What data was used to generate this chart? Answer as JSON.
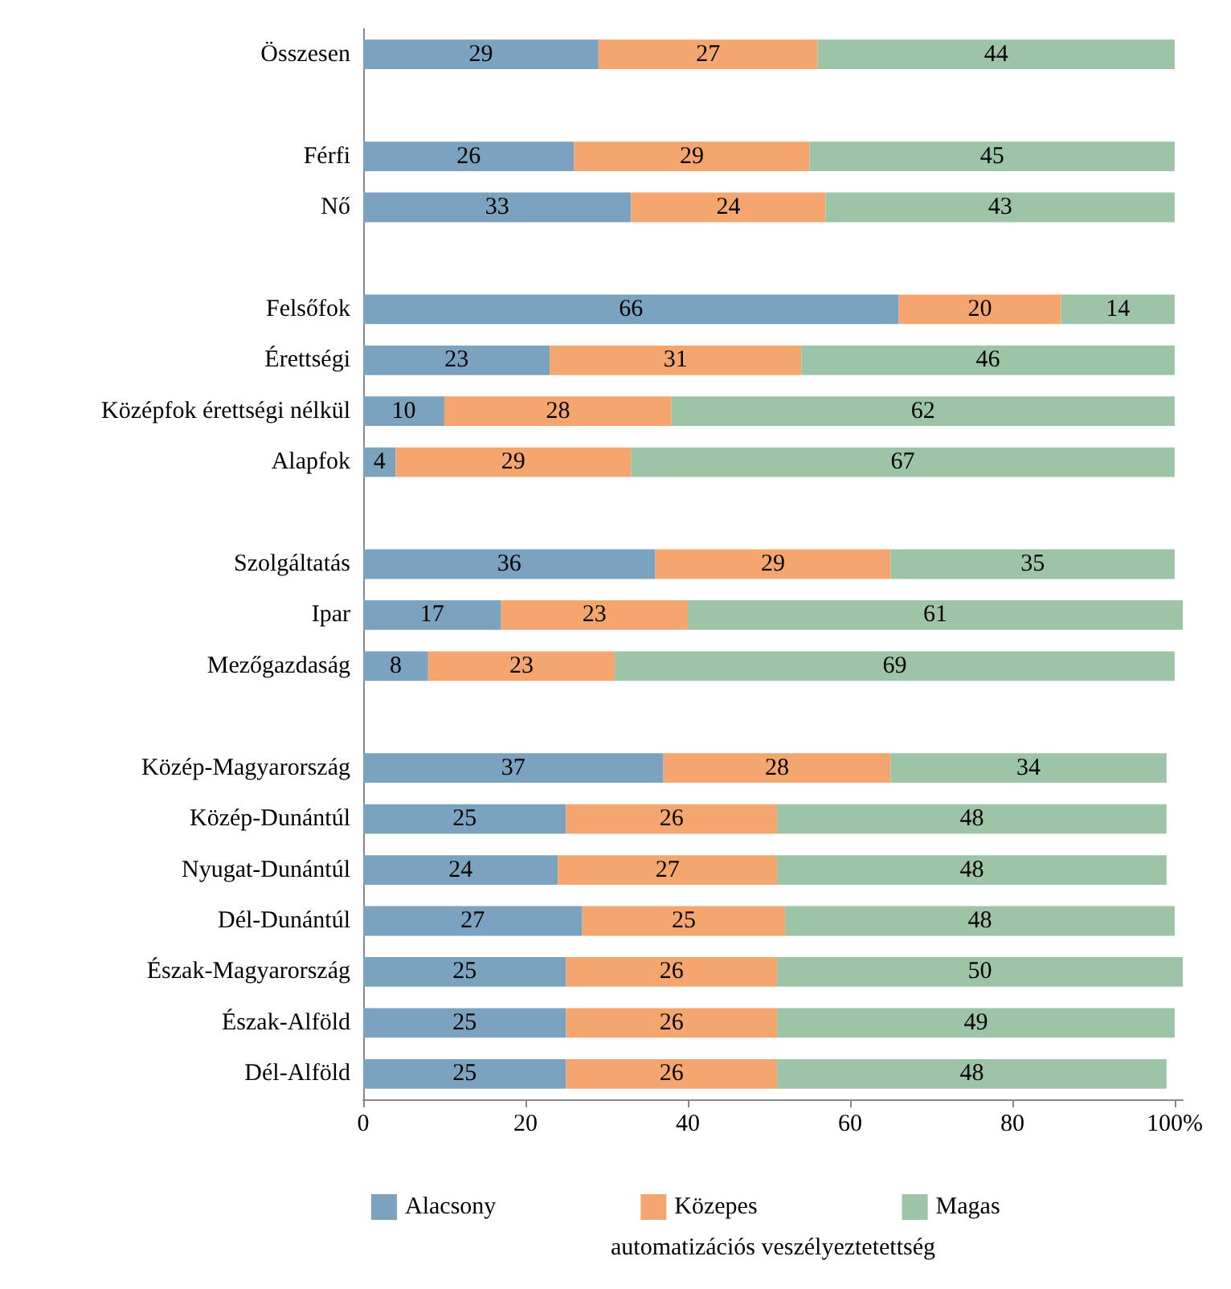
{
  "chart_data": {
    "type": "bar",
    "orientation": "horizontal",
    "stacked": true,
    "xlabel": "automatizációs veszélyeztetettség",
    "categories": [
      "Összesen",
      null,
      "Férfi",
      "Nő",
      null,
      "Felsőfok",
      "Érettségi",
      "Középfok érettségi nélkül",
      "Alapfok",
      null,
      "Szolgáltatás",
      "Ipar",
      "Mezőgazdaság",
      null,
      "Közép-Magyarország",
      "Közép-Dunántúl",
      "Nyugat-Dunántúl",
      "Dél-Dunántúl",
      "Észak-Magyarország",
      "Észak-Alföld",
      "Dél-Alföld"
    ],
    "series": [
      {
        "name": "Alacsony",
        "color": "#7ba2bf",
        "values": [
          29,
          null,
          26,
          33,
          null,
          66,
          23,
          10,
          4,
          null,
          36,
          17,
          8,
          null,
          37,
          25,
          24,
          27,
          25,
          25,
          25
        ]
      },
      {
        "name": "Közepes",
        "color": "#f5a66e",
        "values": [
          27,
          null,
          29,
          24,
          null,
          20,
          31,
          28,
          29,
          null,
          29,
          23,
          23,
          null,
          28,
          26,
          27,
          25,
          26,
          26,
          26
        ]
      },
      {
        "name": "Magas",
        "color": "#9ec4a7",
        "values": [
          44,
          null,
          45,
          43,
          null,
          14,
          46,
          62,
          67,
          null,
          35,
          61,
          69,
          null,
          34,
          48,
          48,
          48,
          50,
          49,
          48
        ]
      }
    ],
    "xlim": [
      0,
      101
    ],
    "xticks": [
      0,
      20,
      40,
      60,
      80,
      {
        "value": 100,
        "label": "100%"
      }
    ],
    "data_labels": true,
    "grid": false,
    "legend": "bottom"
  }
}
